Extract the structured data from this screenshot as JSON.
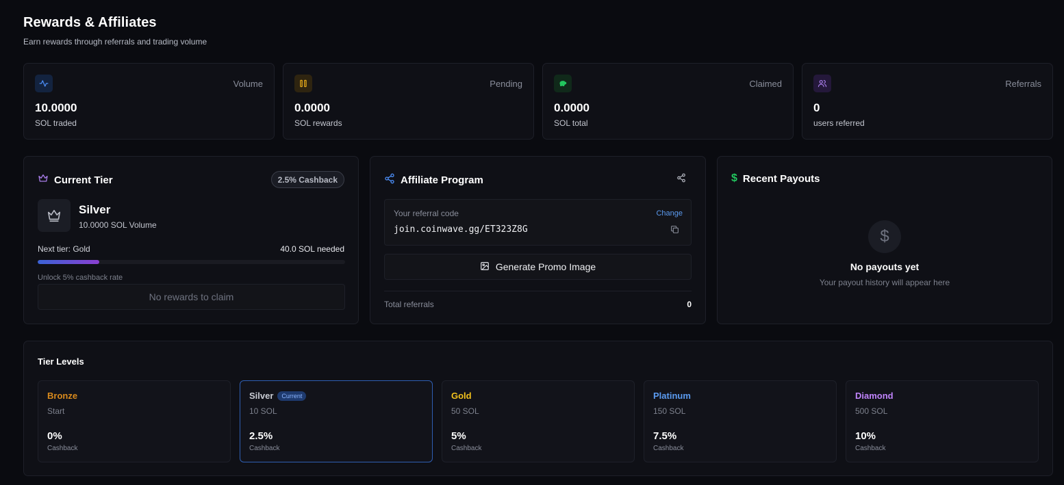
{
  "header": {
    "title": "Rewards & Affiliates",
    "subtitle": "Earn rewards through referrals and trading volume"
  },
  "stats": [
    {
      "label": "Volume",
      "value": "10.0000",
      "sub": "SOL traded",
      "icon": "activity-icon",
      "color": "#4c8ef7"
    },
    {
      "label": "Pending",
      "value": "0.0000",
      "sub": "SOL rewards",
      "icon": "pause-icon",
      "color": "#e5a91a"
    },
    {
      "label": "Claimed",
      "value": "0.0000",
      "sub": "SOL total",
      "icon": "piggy-bank-icon",
      "color": "#22c55e"
    },
    {
      "label": "Referrals",
      "value": "0",
      "sub": "users referred",
      "icon": "users-icon",
      "color": "#a77ce8"
    }
  ],
  "current_tier": {
    "title": "Current Tier",
    "badge": "2.5% Cashback",
    "tier_name": "Silver",
    "volume": "10.0000 SOL Volume",
    "next_tier": "Next tier: Gold",
    "needed": "40.0 SOL needed",
    "progress": 0.2,
    "unlock_text": "Unlock 5% cashback rate",
    "claim_label": "No rewards to claim"
  },
  "affiliate": {
    "title": "Affiliate Program",
    "ref_label": "Your referral code",
    "change_label": "Change",
    "ref_code": "join.coinwave.gg/ET323Z8G",
    "promo_label": "Generate Promo Image",
    "total_label": "Total referrals",
    "total_value": "0"
  },
  "payouts": {
    "title": "Recent Payouts",
    "empty_icon": "$",
    "empty_title": "No payouts yet",
    "empty_sub": "Your payout history will appear here"
  },
  "tier_levels": {
    "title": "Tier Levels",
    "current_badge": "Current",
    "tiers": [
      {
        "name": "Bronze",
        "req": "Start",
        "rate": "0%",
        "cb": "Cashback",
        "color": "#d98a1c"
      },
      {
        "name": "Silver",
        "req": "10 SOL",
        "rate": "2.5%",
        "cb": "Cashback",
        "color": "#c9ccd4"
      },
      {
        "name": "Gold",
        "req": "50 SOL",
        "rate": "5%",
        "cb": "Cashback",
        "color": "#f3c21c"
      },
      {
        "name": "Platinum",
        "req": "150 SOL",
        "rate": "7.5%",
        "cb": "Cashback",
        "color": "#5b9bf0"
      },
      {
        "name": "Diamond",
        "req": "500 SOL",
        "rate": "10%",
        "cb": "Cashback",
        "color": "#c084fc"
      }
    ]
  }
}
